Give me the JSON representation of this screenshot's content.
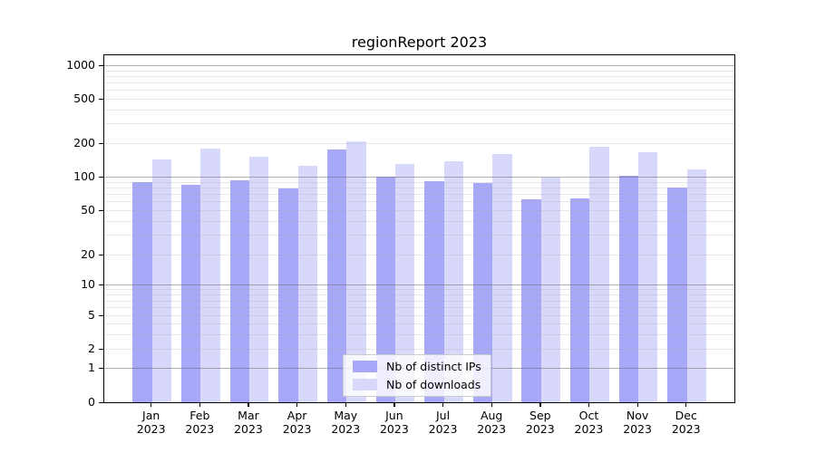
{
  "title": "regionReport 2023",
  "chart_data": {
    "type": "bar",
    "title": "regionReport 2023",
    "categories": [
      "Jan 2023",
      "Feb 2023",
      "Mar 2023",
      "Apr 2023",
      "May 2023",
      "Jun 2023",
      "Jul 2023",
      "Aug 2023",
      "Sep 2023",
      "Oct 2023",
      "Nov 2023",
      "Dec 2023"
    ],
    "series": [
      {
        "name": "Nb of distinct IPs",
        "color": "#a8a8f8",
        "values": [
          90,
          85,
          92,
          78,
          175,
          100,
          91,
          87,
          62,
          64,
          101,
          80
        ]
      },
      {
        "name": "Nb of downloads",
        "color": "#d8d8fa",
        "values": [
          142,
          178,
          152,
          125,
          210,
          130,
          137,
          159,
          98,
          187,
          166,
          117
        ]
      }
    ],
    "ytick_values": [
      0,
      1,
      2,
      5,
      10,
      20,
      50,
      100,
      200,
      500,
      1000
    ],
    "ytick_labels": [
      "0",
      "1",
      "2",
      "5",
      "10",
      "20",
      "50",
      "100",
      "200",
      "500",
      "1000"
    ],
    "yscale": "log-like (compressed linear segment between 0 and 1)",
    "grid": true,
    "legend_position": "lower center",
    "axes_background": "#ffffff"
  }
}
